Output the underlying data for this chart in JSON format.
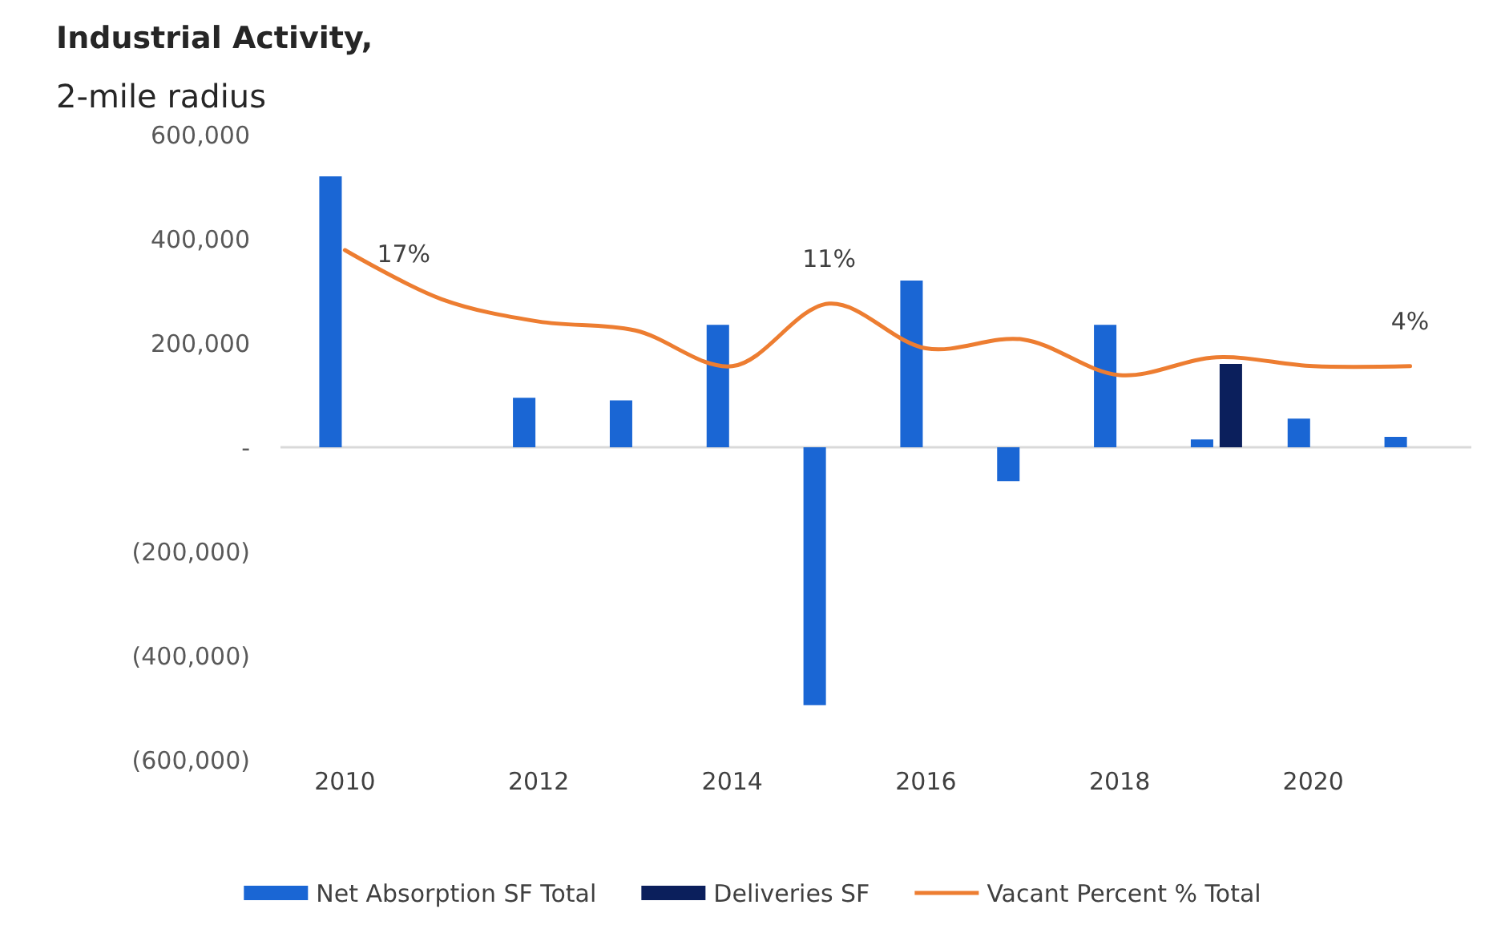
{
  "chart_data": {
    "type": "bar",
    "title": "Industrial Activity,",
    "subtitle": "2-mile radius",
    "categories": [
      "2010",
      null,
      "2012",
      null,
      "2014",
      null,
      "2016",
      null,
      "2018",
      null,
      "2020",
      null
    ],
    "series": [
      {
        "name": "Net Absorption SF Total",
        "color": "#1a66d4",
        "values": [
          520000,
          null,
          95000,
          90000,
          235000,
          -495000,
          320000,
          -65000,
          235000,
          15000,
          55000,
          20000
        ]
      },
      {
        "name": "Deliveries SF",
        "color": "#0b1f5c",
        "values": [
          null,
          null,
          null,
          null,
          null,
          null,
          null,
          null,
          null,
          160000,
          null,
          null
        ]
      },
      {
        "name": "Vacant Percent % Total",
        "type": "line",
        "axis": "y2",
        "color": "#ed7d31",
        "values": [
          17,
          11.5,
          9,
          8,
          4,
          11,
          6,
          7,
          3,
          5,
          4,
          4
        ],
        "value_labels": [
          "17%",
          null,
          null,
          null,
          null,
          "11%",
          null,
          null,
          null,
          null,
          null,
          "4%"
        ]
      }
    ],
    "ylim": [
      -600000,
      600000
    ],
    "yticks": [
      {
        "value": -600000,
        "label": "(600,000)"
      },
      {
        "value": -400000,
        "label": "(400,000)"
      },
      {
        "value": -200000,
        "label": "(200,000)"
      },
      {
        "value": 0,
        "label": "-"
      },
      {
        "value": 200000,
        "label": "200,000"
      },
      {
        "value": 400000,
        "label": "400,000"
      },
      {
        "value": 600000,
        "label": "600,000"
      }
    ],
    "legend": "bottom"
  }
}
